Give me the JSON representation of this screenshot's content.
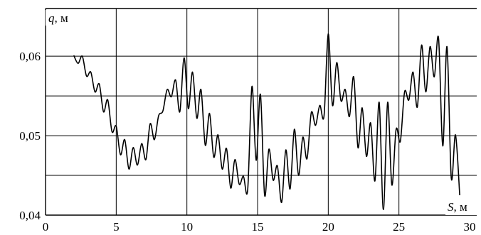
{
  "chart_data": {
    "type": "line",
    "title": "",
    "xlabel": {
      "symbol": "S",
      "unit": ", м"
    },
    "ylabel": {
      "symbol": "q",
      "unit": ", м"
    },
    "xlim": [
      0,
      30
    ],
    "ylim": [
      0.04,
      0.066
    ],
    "x_ticks": [
      {
        "value": 0,
        "label": "0"
      },
      {
        "value": 5,
        "label": "5"
      },
      {
        "value": 10,
        "label": "10"
      },
      {
        "value": 15,
        "label": "15"
      },
      {
        "value": 20,
        "label": "20"
      },
      {
        "value": 25,
        "label": "25"
      },
      {
        "value": 30,
        "label": "30"
      }
    ],
    "y_ticks": [
      {
        "value": 0.04,
        "label": "0,04"
      },
      {
        "value": 0.05,
        "label": "0,05"
      },
      {
        "value": 0.06,
        "label": "0,06"
      }
    ],
    "x_grid": [
      5,
      10,
      15,
      20,
      25
    ],
    "y_grid": [
      0.045,
      0.05,
      0.055,
      0.06
    ],
    "grid": true,
    "legend": "none",
    "series": [
      {
        "x": [
          2.0,
          2.3,
          2.6,
          2.9,
          3.2,
          3.5,
          3.8,
          4.1,
          4.4,
          4.7,
          5.0,
          5.3,
          5.6,
          5.9,
          6.2,
          6.5,
          6.8,
          7.1,
          7.4,
          7.7,
          8.0,
          8.3,
          8.6,
          8.9,
          9.2,
          9.5,
          9.8,
          10.1,
          10.4,
          10.7,
          11.0,
          11.3,
          11.6,
          11.9,
          12.2,
          12.5,
          12.8,
          13.1,
          13.4,
          13.7,
          14.0,
          14.3,
          14.6,
          14.9,
          15.2,
          15.5,
          15.8,
          16.1,
          16.4,
          16.7,
          17.0,
          17.3,
          17.6,
          17.9,
          18.2,
          18.5,
          18.8,
          19.1,
          19.4,
          19.7,
          20.0,
          20.3,
          20.6,
          20.9,
          21.2,
          21.5,
          21.8,
          22.1,
          22.4,
          22.7,
          23.0,
          23.3,
          23.6,
          23.9,
          24.2,
          24.5,
          24.8,
          25.1,
          25.4,
          25.7,
          26.0,
          26.3,
          26.6,
          26.9,
          27.2,
          27.5,
          27.8,
          28.1,
          28.4,
          28.7,
          29.0,
          29.3
        ],
        "y": [
          0.0601,
          0.0591,
          0.06,
          0.0575,
          0.058,
          0.0555,
          0.0565,
          0.053,
          0.0545,
          0.0505,
          0.0512,
          0.0476,
          0.0495,
          0.0458,
          0.0485,
          0.0463,
          0.049,
          0.047,
          0.0515,
          0.0495,
          0.0525,
          0.0531,
          0.0558,
          0.0549,
          0.057,
          0.053,
          0.0598,
          0.0534,
          0.058,
          0.0522,
          0.0558,
          0.0488,
          0.0528,
          0.0473,
          0.0501,
          0.0458,
          0.0484,
          0.0434,
          0.047,
          0.0439,
          0.0449,
          0.0432,
          0.0562,
          0.0469,
          0.0552,
          0.0425,
          0.0483,
          0.0444,
          0.0462,
          0.0416,
          0.0482,
          0.0433,
          0.0508,
          0.045,
          0.0498,
          0.0471,
          0.0529,
          0.0513,
          0.0538,
          0.0525,
          0.0628,
          0.0538,
          0.0592,
          0.0544,
          0.0558,
          0.0524,
          0.0574,
          0.0485,
          0.0535,
          0.0474,
          0.0516,
          0.0443,
          0.0542,
          0.0407,
          0.0542,
          0.0438,
          0.0508,
          0.0493,
          0.0555,
          0.0545,
          0.058,
          0.0536,
          0.0614,
          0.0555,
          0.0612,
          0.0574,
          0.0623,
          0.0487,
          0.0612,
          0.0447,
          0.0501,
          0.0425
        ]
      }
    ]
  }
}
